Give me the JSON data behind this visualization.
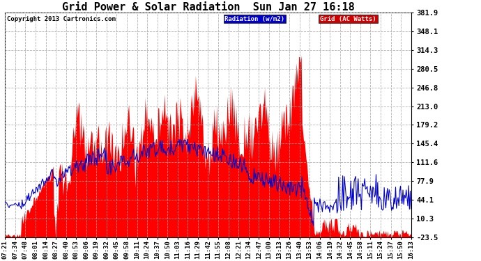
{
  "title": "Grid Power & Solar Radiation  Sun Jan 27 16:18",
  "copyright": "Copyright 2013 Cartronics.com",
  "legend_labels": [
    "Radiation (w/m2)",
    "Grid (AC Watts)"
  ],
  "legend_colors": [
    "#0000ee",
    "#dd0000"
  ],
  "y_ticks": [
    381.9,
    348.1,
    314.3,
    280.5,
    246.8,
    213.0,
    179.2,
    145.4,
    111.6,
    77.9,
    44.1,
    10.3,
    -23.5
  ],
  "ylim": [
    -23.5,
    381.9
  ],
  "background_color": "#ffffff",
  "grid_color": "#aaaaaa",
  "fill_color": "#ff0000",
  "line_color": "#0000cc",
  "x_labels": [
    "07:21",
    "07:34",
    "07:48",
    "08:01",
    "08:14",
    "08:27",
    "08:40",
    "08:53",
    "09:06",
    "09:19",
    "09:32",
    "09:45",
    "09:58",
    "10:11",
    "10:24",
    "10:37",
    "10:50",
    "11:03",
    "11:16",
    "11:29",
    "11:42",
    "11:55",
    "12:08",
    "12:21",
    "12:34",
    "12:47",
    "13:00",
    "13:13",
    "13:26",
    "13:40",
    "13:53",
    "14:06",
    "14:19",
    "14:32",
    "14:45",
    "14:58",
    "15:11",
    "15:24",
    "15:37",
    "15:50",
    "16:13"
  ]
}
